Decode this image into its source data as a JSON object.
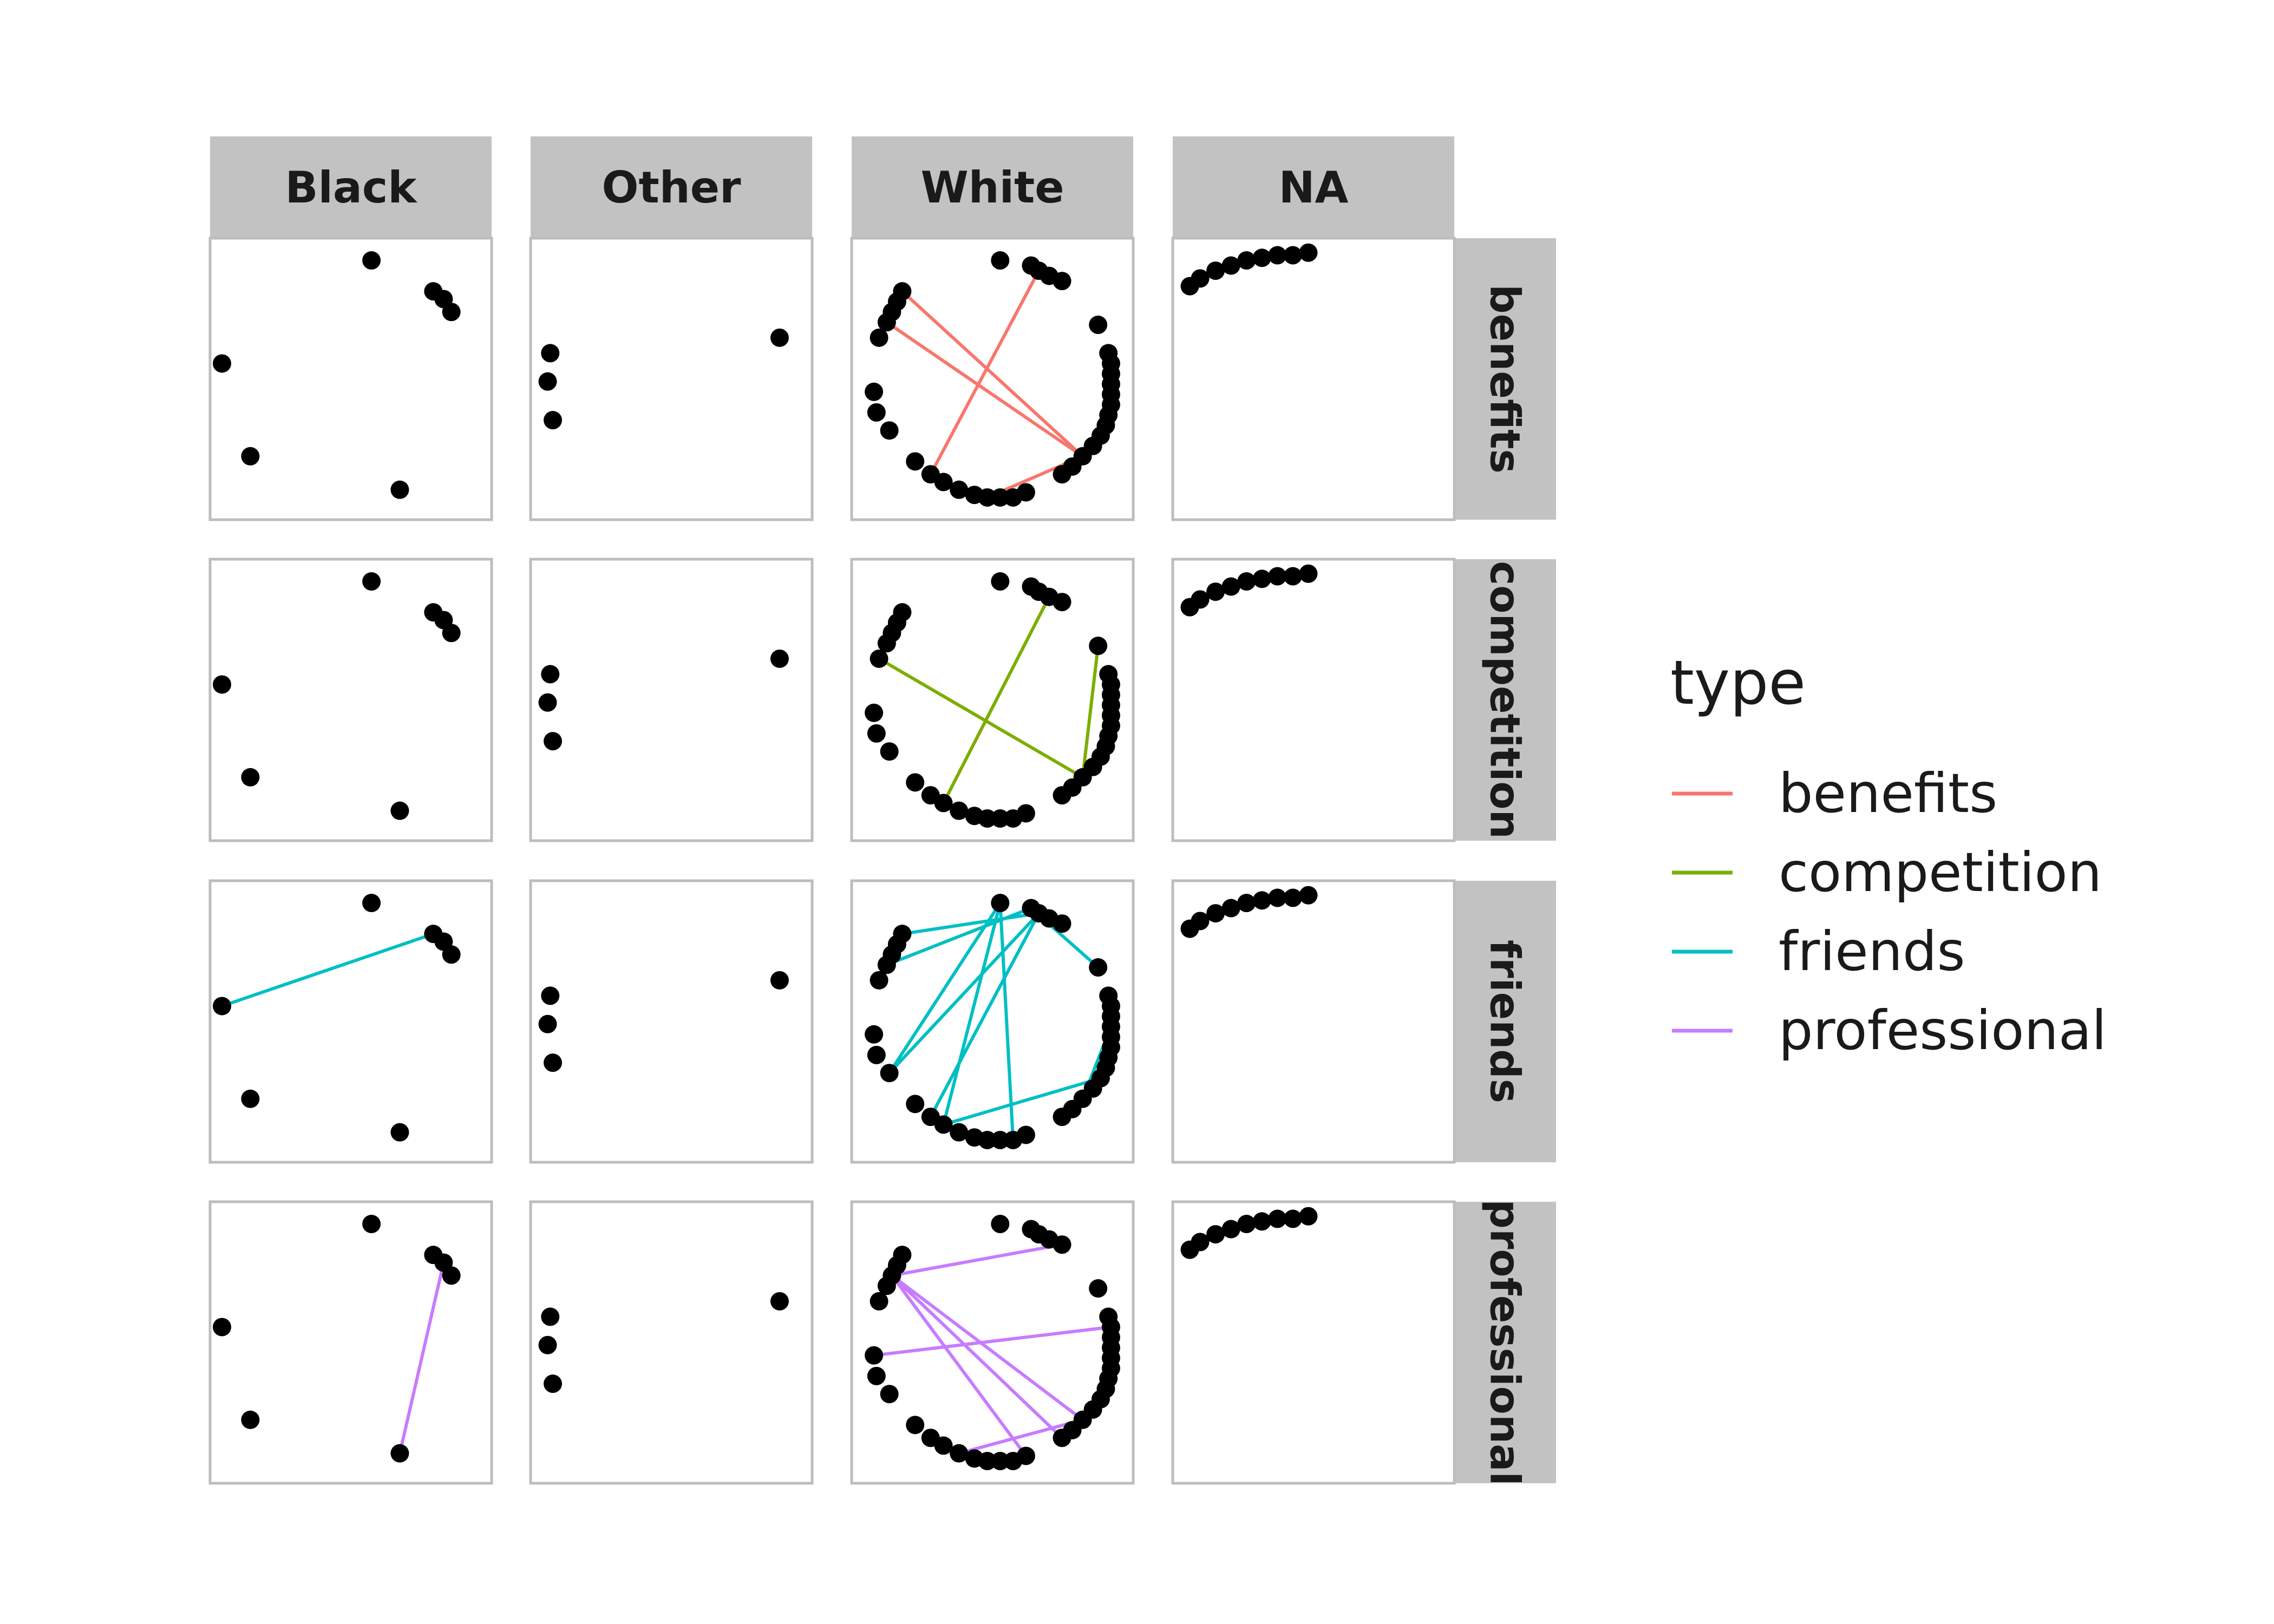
{
  "chart_data": {
    "type": "network-facets",
    "columns": [
      "Black",
      "Other",
      "White",
      "NA"
    ],
    "rows": [
      "benefits",
      "competition",
      "friends",
      "professional"
    ],
    "legend": {
      "title": "type",
      "entries": [
        {
          "label": "benefits",
          "color": "#F8766D"
        },
        {
          "label": "competition",
          "color": "#7CAE00"
        },
        {
          "label": "friends",
          "color": "#00BFC4"
        },
        {
          "label": "professional",
          "color": "#C77CFF"
        }
      ]
    },
    "nodes": {
      "Black": [
        [
          0.58,
          0.96
        ],
        [
          0.82,
          0.84
        ],
        [
          0.86,
          0.81
        ],
        [
          0.89,
          0.76
        ],
        [
          0.0,
          0.56
        ],
        [
          0.11,
          0.2
        ],
        [
          0.69,
          0.07
        ]
      ],
      "Other": [
        [
          0.92,
          0.66
        ],
        [
          0.03,
          0.6
        ],
        [
          0.02,
          0.49
        ],
        [
          0.04,
          0.34
        ]
      ],
      "White": [
        [
          0.53,
          0.96
        ],
        [
          0.65,
          0.94
        ],
        [
          0.68,
          0.92
        ],
        [
          0.72,
          0.9
        ],
        [
          0.77,
          0.88
        ],
        [
          0.91,
          0.71
        ],
        [
          0.95,
          0.6
        ],
        [
          0.96,
          0.56
        ],
        [
          0.96,
          0.52
        ],
        [
          0.96,
          0.48
        ],
        [
          0.96,
          0.44
        ],
        [
          0.96,
          0.4
        ],
        [
          0.95,
          0.36
        ],
        [
          0.94,
          0.32
        ],
        [
          0.92,
          0.28
        ],
        [
          0.89,
          0.24
        ],
        [
          0.85,
          0.2
        ],
        [
          0.81,
          0.16
        ],
        [
          0.77,
          0.13
        ],
        [
          0.63,
          0.06
        ],
        [
          0.58,
          0.04
        ],
        [
          0.53,
          0.04
        ],
        [
          0.48,
          0.04
        ],
        [
          0.43,
          0.05
        ],
        [
          0.37,
          0.07
        ],
        [
          0.31,
          0.1
        ],
        [
          0.26,
          0.13
        ],
        [
          0.2,
          0.18
        ],
        [
          0.1,
          0.3
        ],
        [
          0.05,
          0.37
        ],
        [
          0.04,
          0.45
        ],
        [
          0.06,
          0.66
        ],
        [
          0.09,
          0.72
        ],
        [
          0.11,
          0.76
        ],
        [
          0.13,
          0.8
        ],
        [
          0.15,
          0.84
        ]
      ],
      "NA": [
        [
          0.02,
          0.86
        ],
        [
          0.06,
          0.89
        ],
        [
          0.12,
          0.92
        ],
        [
          0.18,
          0.94
        ],
        [
          0.24,
          0.96
        ],
        [
          0.3,
          0.97
        ],
        [
          0.36,
          0.98
        ],
        [
          0.42,
          0.98
        ],
        [
          0.48,
          0.99
        ]
      ]
    },
    "edges": {
      "benefits": {
        "White": [
          [
            2,
            26
          ],
          [
            32,
            16
          ],
          [
            35,
            16
          ],
          [
            16,
            22
          ]
        ]
      },
      "competition": {
        "White": [
          [
            3,
            25
          ],
          [
            5,
            16
          ],
          [
            31,
            16
          ],
          [
            25,
            22
          ]
        ]
      },
      "friends": {
        "Black": [
          [
            1,
            4
          ]
        ],
        "White": [
          [
            0,
            28
          ],
          [
            0,
            25
          ],
          [
            0,
            20
          ],
          [
            2,
            26
          ],
          [
            2,
            28
          ],
          [
            2,
            35
          ],
          [
            1,
            5
          ],
          [
            1,
            32
          ],
          [
            9,
            16
          ],
          [
            14,
            25
          ]
        ]
      },
      "professional": {
        "Black": [
          [
            2,
            6
          ]
        ],
        "White": [
          [
            4,
            33
          ],
          [
            7,
            30
          ],
          [
            33,
            19
          ],
          [
            33,
            16
          ],
          [
            33,
            18
          ],
          [
            24,
            16
          ]
        ]
      }
    }
  }
}
